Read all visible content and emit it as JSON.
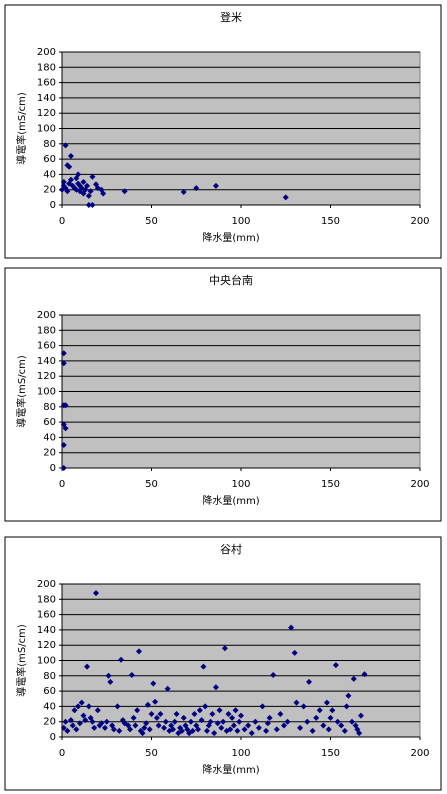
{
  "chart_data": [
    {
      "type": "scatter",
      "title": "登米",
      "x_label": "降水量(mm)",
      "y_label": "導電率(mS/cm)",
      "color": "#000080",
      "grid": true,
      "xlim": [
        0,
        200
      ],
      "xticks": [
        0,
        50,
        100,
        150,
        200
      ],
      "ylim": [
        0,
        200
      ],
      "yticks": [
        0,
        20,
        40,
        60,
        80,
        100,
        120,
        140,
        160,
        180,
        200
      ],
      "x": [
        0,
        1,
        1,
        2,
        2,
        3,
        3,
        4,
        4,
        5,
        5,
        6,
        7,
        8,
        8,
        9,
        9,
        10,
        10,
        11,
        12,
        12,
        13,
        14,
        15,
        15,
        16,
        17,
        17,
        19,
        20,
        22,
        23,
        35,
        68,
        75,
        86,
        125
      ],
      "values": [
        20,
        25,
        30,
        78,
        22,
        52,
        18,
        50,
        28,
        64,
        33,
        25,
        22,
        20,
        35,
        40,
        28,
        18,
        25,
        22,
        30,
        15,
        20,
        25,
        0,
        12,
        18,
        0,
        37,
        27,
        22,
        20,
        15,
        18,
        17,
        22,
        25,
        10
      ]
    },
    {
      "type": "scatter",
      "title": "中央台南",
      "x_label": "降水量(mm)",
      "y_label": "導電率(mS/cm)",
      "color": "#000080",
      "grid": true,
      "xlim": [
        0,
        200
      ],
      "xticks": [
        0,
        50,
        100,
        150,
        200
      ],
      "ylim": [
        0,
        200
      ],
      "yticks": [
        0,
        20,
        40,
        60,
        80,
        100,
        120,
        140,
        160,
        180,
        200
      ],
      "x": [
        1,
        1,
        1,
        2,
        1,
        2,
        1,
        1
      ],
      "values": [
        150,
        137,
        82,
        82,
        57,
        52,
        30,
        0
      ]
    },
    {
      "type": "scatter",
      "title": "谷村",
      "x_label": "降水量(mm)",
      "y_label": "導電率(mS/cm)",
      "color": "#000080",
      "grid": true,
      "xlim": [
        0,
        200
      ],
      "xticks": [
        0,
        50,
        100,
        150,
        200
      ],
      "ylim": [
        0,
        200
      ],
      "yticks": [
        0,
        20,
        40,
        60,
        80,
        100,
        120,
        140,
        160,
        180,
        200
      ],
      "x": [
        1,
        2,
        3,
        5,
        6,
        7,
        8,
        9,
        10,
        11,
        12,
        13,
        14,
        15,
        16,
        17,
        18,
        19,
        20,
        21,
        22,
        24,
        25,
        26,
        27,
        28,
        29,
        31,
        32,
        33,
        34,
        35,
        37,
        38,
        39,
        40,
        41,
        42,
        43,
        44,
        45,
        46,
        47,
        48,
        49,
        50,
        51,
        52,
        53,
        54,
        55,
        57,
        58,
        59,
        60,
        61,
        62,
        63,
        64,
        65,
        66,
        67,
        68,
        69,
        70,
        71,
        72,
        73,
        74,
        75,
        76,
        77,
        78,
        79,
        80,
        81,
        82,
        83,
        84,
        85,
        86,
        87,
        88,
        89,
        90,
        91,
        92,
        93,
        94,
        95,
        96,
        97,
        98,
        99,
        100,
        102,
        104,
        106,
        108,
        110,
        112,
        114,
        115,
        116,
        118,
        120,
        122,
        124,
        126,
        128,
        130,
        131,
        133,
        135,
        137,
        138,
        140,
        142,
        144,
        146,
        148,
        149,
        150,
        151,
        153,
        154,
        156,
        158,
        159,
        160,
        162,
        163,
        164,
        165,
        166,
        167,
        169
      ],
      "values": [
        12,
        20,
        8,
        22,
        15,
        35,
        10,
        40,
        18,
        45,
        28,
        22,
        92,
        40,
        25,
        20,
        12,
        188,
        35,
        15,
        18,
        12,
        20,
        80,
        72,
        15,
        10,
        40,
        8,
        101,
        22,
        18,
        15,
        10,
        81,
        25,
        15,
        35,
        112,
        8,
        5,
        12,
        18,
        42,
        10,
        30,
        70,
        46,
        25,
        15,
        30,
        12,
        20,
        63,
        8,
        15,
        10,
        20,
        30,
        5,
        12,
        8,
        25,
        15,
        10,
        5,
        20,
        8,
        30,
        15,
        10,
        35,
        22,
        92,
        40,
        8,
        15,
        20,
        30,
        5,
        65,
        18,
        35,
        12,
        20,
        116,
        8,
        30,
        10,
        25,
        15,
        35,
        8,
        20,
        28,
        10,
        15,
        5,
        20,
        12,
        40,
        8,
        18,
        25,
        81,
        10,
        30,
        15,
        20,
        143,
        110,
        45,
        12,
        40,
        20,
        72,
        8,
        25,
        35,
        15,
        45,
        10,
        25,
        35,
        94,
        20,
        15,
        8,
        40,
        54,
        20,
        76,
        15,
        10,
        5,
        28,
        82
      ]
    }
  ]
}
